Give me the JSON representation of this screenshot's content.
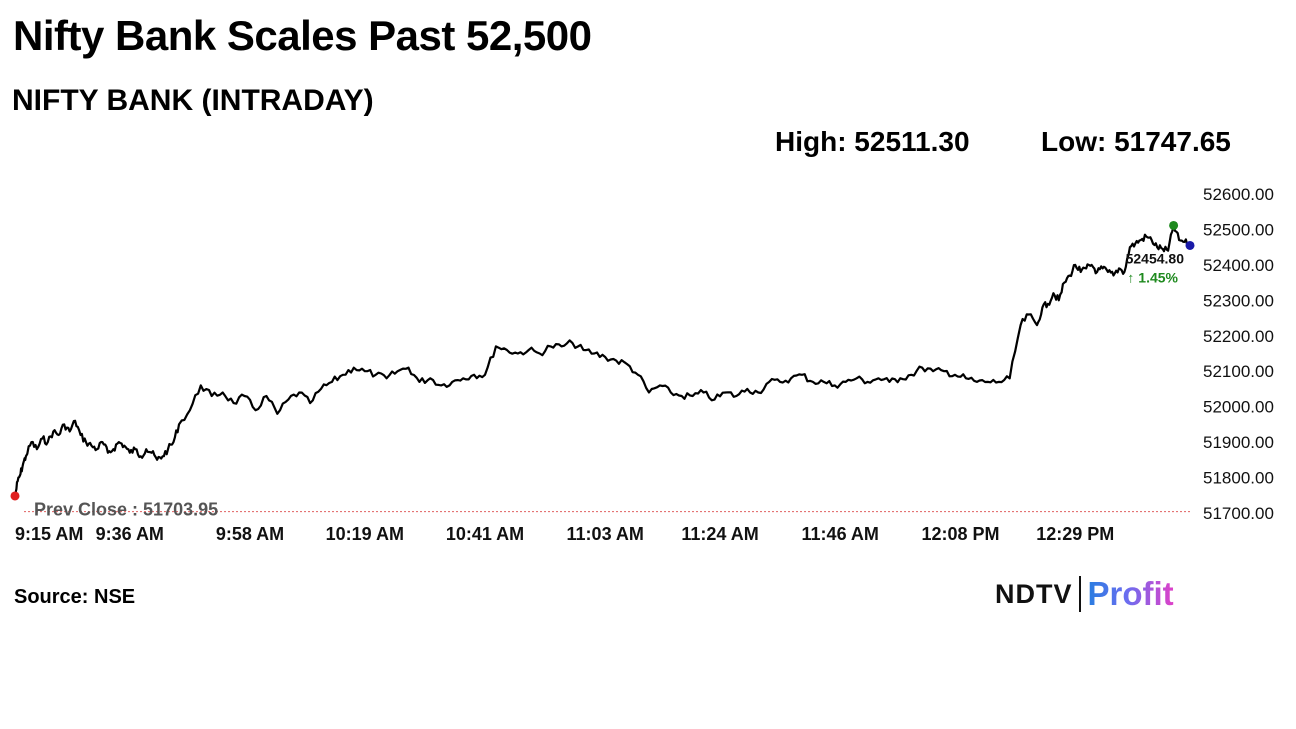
{
  "headline": "Nifty Bank Scales Past 52,500",
  "subtitle": "NIFTY BANK (INTRADAY)",
  "stats": {
    "high_label": "High: 52511.30",
    "low_label": "Low: 51747.65"
  },
  "source": "Source: NSE",
  "logo": {
    "part1": "NDTV",
    "part2": "Profit"
  },
  "colors": {
    "line": "#000000",
    "prev_close_line": "#e06060",
    "start_dot": "#e02020",
    "high_dot": "#1f8a1f",
    "last_dot": "#1a1aa8",
    "change_positive": "#1f8a1f"
  },
  "chart_data": {
    "type": "line",
    "title": "NIFTY BANK (INTRADAY)",
    "ylim": [
      51700,
      52600
    ],
    "yticks": [
      52600,
      52500,
      52400,
      52300,
      52200,
      52100,
      52000,
      51900,
      51800,
      51700
    ],
    "ytick_labels": [
      "52600.00",
      "52500.00",
      "52400.00",
      "52300.00",
      "52200.00",
      "52100.00",
      "52000.00",
      "51900.00",
      "51800.00",
      "51700.00"
    ],
    "x_range_minutes": [
      0,
      215
    ],
    "xticks": [
      0,
      21,
      43,
      64,
      86,
      108,
      129,
      151,
      173,
      194
    ],
    "xtick_labels": [
      "9:15 AM",
      "9:36 AM",
      "9:58 AM",
      "10:19 AM",
      "10:41 AM",
      "11:03 AM",
      "11:24 AM",
      "11:46 AM",
      "12:08 PM",
      "12:29 PM"
    ],
    "prev_close": 51703.95,
    "prev_close_label": "Prev Close : 51703.95",
    "high": 52511.3,
    "low": 51747.65,
    "last": 52454.8,
    "last_label": "52454.80",
    "change_label": "↑ 1.45%",
    "series": [
      {
        "x": [
          0,
          0.5,
          1,
          1.5,
          2,
          3,
          4,
          5,
          6,
          7,
          8,
          9,
          10,
          11,
          12,
          13,
          14,
          15,
          16,
          17,
          18,
          19,
          20,
          21,
          22,
          23,
          24,
          25,
          26,
          27,
          28,
          29,
          30,
          32,
          34,
          36,
          38,
          40,
          42,
          44,
          46,
          48,
          50,
          52,
          54,
          56,
          58,
          60,
          62,
          64,
          66,
          68,
          70,
          72,
          74,
          76,
          78,
          80,
          82,
          84,
          86,
          88,
          90,
          92,
          94,
          96,
          98,
          100,
          102,
          104,
          106,
          108,
          110,
          112,
          114,
          116,
          118,
          120,
          122,
          124,
          126,
          128,
          130,
          132,
          134,
          136,
          138,
          140,
          142,
          144,
          146,
          148,
          150,
          152,
          154,
          156,
          158,
          160,
          162,
          164,
          166,
          168,
          170,
          172,
          174,
          176,
          178,
          180,
          182,
          184,
          185.5,
          187,
          188,
          189,
          190,
          191,
          192,
          193,
          194,
          195,
          196,
          197,
          198,
          199,
          200,
          201,
          202,
          203,
          204,
          205,
          206,
          207,
          208,
          209,
          210,
          211,
          212,
          213,
          214,
          215
        ],
        "values": [
          51748,
          51790,
          51810,
          51840,
          51860,
          51900,
          51880,
          51910,
          51900,
          51930,
          51920,
          51950,
          51930,
          51960,
          51920,
          51900,
          51890,
          51880,
          51900,
          51870,
          51880,
          51900,
          51890,
          51870,
          51880,
          51860,
          51880,
          51870,
          51850,
          51860,
          51880,
          51900,
          51950,
          51990,
          52060,
          52030,
          52040,
          52010,
          52030,
          51990,
          52030,
          51980,
          52020,
          52040,
          52010,
          52050,
          52070,
          52090,
          52110,
          52100,
          52090,
          52080,
          52100,
          52110,
          52070,
          52080,
          52060,
          52070,
          52080,
          52090,
          52090,
          52170,
          52160,
          52150,
          52160,
          52150,
          52170,
          52170,
          52180,
          52160,
          52150,
          52140,
          52130,
          52120,
          52090,
          52040,
          52060,
          52040,
          52030,
          52030,
          52040,
          52020,
          52040,
          52030,
          52050,
          52040,
          52070,
          52070,
          52080,
          52090,
          52070,
          52070,
          52060,
          52070,
          52080,
          52070,
          52080,
          52070,
          52080,
          52090,
          52110,
          52100,
          52100,
          52090,
          52080,
          52070,
          52070,
          52070,
          52080,
          52230,
          52260,
          52230,
          52280,
          52290,
          52320,
          52300,
          52350,
          52370,
          52400,
          52380,
          52390,
          52400,
          52380,
          52390,
          52380,
          52370,
          52390,
          52380,
          52450,
          52460,
          52470,
          52480,
          52470,
          52450,
          52445,
          52440,
          52511,
          52470,
          52465,
          52454.8
        ]
      }
    ],
    "grid": false,
    "legend": "none"
  }
}
